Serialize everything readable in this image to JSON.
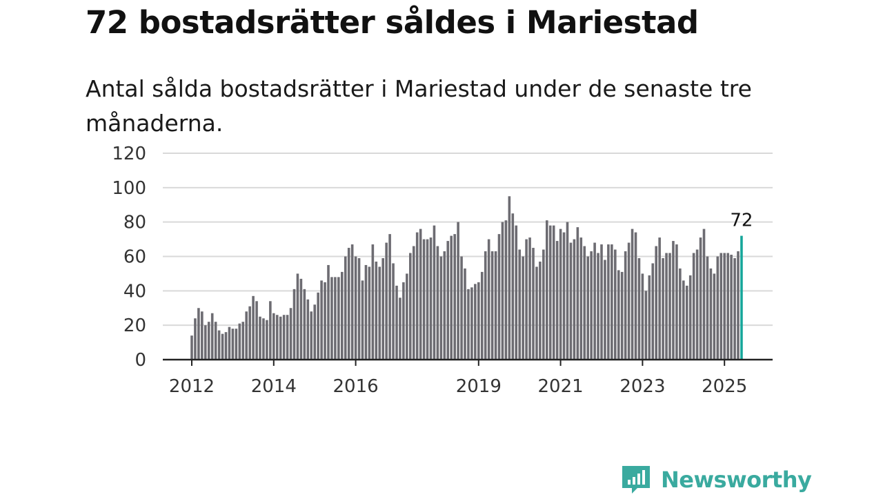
{
  "title": "72 bostadsrätter såldes i Mariestad",
  "subtitle": "Antal sålda bostadsrätter i Mariestad under de senaste tre månaderna.",
  "brand": {
    "name": "Newsworthy",
    "icon": "newsworthy-chart-icon",
    "color": "#3aaa9f"
  },
  "colors": {
    "bar": "#6d6c72",
    "highlight": "#16a69a",
    "grid": "#d9d9d9",
    "axis": "#222222"
  },
  "chart_data": {
    "type": "bar",
    "x_start": "2012-01",
    "x_ticks": [
      "2012",
      "2014",
      "2016",
      "2019",
      "2021",
      "2023",
      "2025"
    ],
    "ylim": [
      0,
      120
    ],
    "y_ticks": [
      0,
      20,
      40,
      60,
      80,
      100,
      120
    ],
    "grid": true,
    "values": [
      14,
      24,
      30,
      28,
      20,
      22,
      27,
      22,
      17,
      15,
      16,
      19,
      18,
      18,
      21,
      22,
      28,
      31,
      37,
      34,
      25,
      24,
      23,
      34,
      27,
      26,
      25,
      26,
      26,
      30,
      41,
      50,
      47,
      41,
      35,
      28,
      32,
      39,
      46,
      45,
      55,
      48,
      48,
      48,
      51,
      60,
      65,
      67,
      60,
      59,
      46,
      55,
      54,
      67,
      57,
      54,
      59,
      68,
      73,
      56,
      43,
      36,
      45,
      50,
      62,
      66,
      74,
      76,
      70,
      70,
      71,
      78,
      66,
      60,
      63,
      69,
      72,
      73,
      80,
      60,
      53,
      41,
      42,
      44,
      45,
      51,
      63,
      70,
      63,
      63,
      73,
      80,
      81,
      95,
      85,
      78,
      64,
      60,
      70,
      71,
      65,
      54,
      57,
      64,
      81,
      78,
      78,
      69,
      76,
      74,
      80,
      68,
      70,
      77,
      71,
      66,
      60,
      63,
      68,
      62,
      67,
      58,
      67,
      67,
      64,
      52,
      51,
      63,
      68,
      76,
      74,
      59,
      50,
      40,
      49,
      56,
      66,
      71,
      59,
      62,
      62,
      69,
      67,
      53,
      46,
      43,
      49,
      62,
      64,
      71,
      76,
      60,
      53,
      50,
      60,
      62,
      62,
      62,
      61,
      59,
      63,
      72
    ],
    "highlight": {
      "value": 72,
      "label": "72"
    }
  }
}
